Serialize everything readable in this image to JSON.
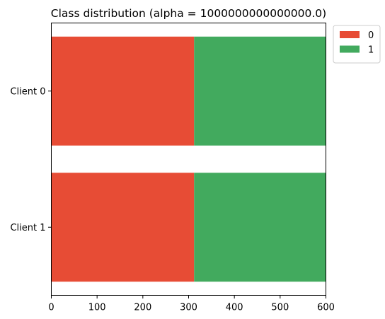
{
  "chart_data": {
    "type": "bar",
    "orientation": "horizontal",
    "stacked": true,
    "title": "Class distribution (alpha = 1000000000000000.0)",
    "xlabel": "",
    "ylabel": "",
    "categories": [
      "Client 0",
      "Client 1"
    ],
    "series": [
      {
        "name": "0",
        "color": "#e74c35",
        "values": [
          312,
          312
        ]
      },
      {
        "name": "1",
        "color": "#42aa5e",
        "values": [
          288,
          288
        ]
      }
    ],
    "xlim": [
      0,
      600
    ],
    "xticks": [
      0,
      100,
      200,
      300,
      400,
      500,
      600
    ],
    "grid": false,
    "legend": "outside-top-right"
  }
}
